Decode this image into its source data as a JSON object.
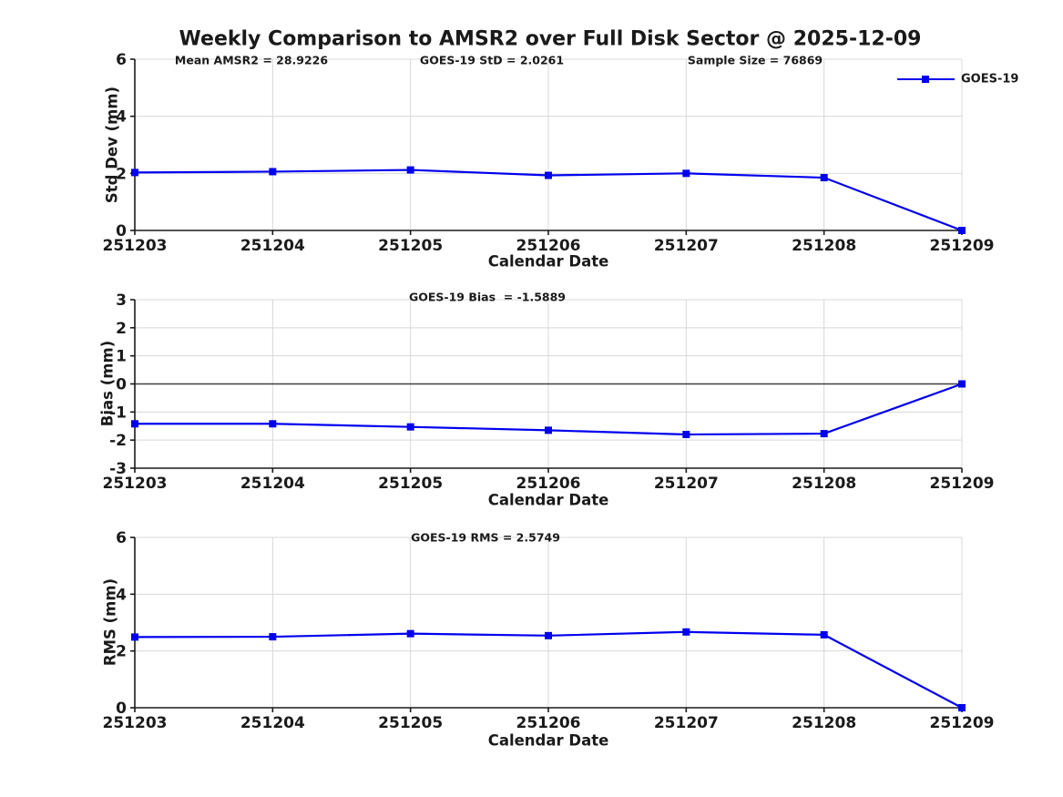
{
  "title": "Weekly Comparison to AMSR2 over Full Disk Sector @ 2025-12-09",
  "colors": {
    "line": "#0000ee",
    "grid": "#d8d8d8",
    "axis": "#1a1a1a",
    "zero_line": "#404040",
    "text": "#1a1a1a"
  },
  "chart_data": [
    {
      "type": "line",
      "id": "std-dev",
      "ylabel": "Std Dev (mm)",
      "xlabel": "Calendar Date",
      "categories": [
        "251203",
        "251204",
        "251205",
        "251206",
        "251207",
        "251208",
        "251209"
      ],
      "series": [
        {
          "name": "GOES-19",
          "values": [
            2.03,
            2.06,
            2.12,
            1.93,
            2.0,
            1.85,
            0.0
          ]
        }
      ],
      "ylim": [
        0,
        6
      ],
      "yticks": [
        0,
        2,
        4,
        6
      ],
      "grid": true,
      "zero_line": false,
      "legend_position": "top-right",
      "annotations": [
        {
          "text": "Mean AMSR2 = 28.9226"
        },
        {
          "text": "GOES-19 StD = 2.0261"
        },
        {
          "text": "Sample Size = 76869"
        }
      ]
    },
    {
      "type": "line",
      "id": "bias",
      "ylabel": "Bias (mm)",
      "xlabel": "Calendar Date",
      "categories": [
        "251203",
        "251204",
        "251205",
        "251206",
        "251207",
        "251208",
        "251209"
      ],
      "series": [
        {
          "name": "GOES-19",
          "values": [
            -1.42,
            -1.42,
            -1.53,
            -1.65,
            -1.8,
            -1.77,
            0.0
          ]
        }
      ],
      "ylim": [
        -3,
        3
      ],
      "yticks": [
        -3,
        -2,
        -1,
        0,
        1,
        2,
        3
      ],
      "grid": true,
      "zero_line": true,
      "legend_position": "none",
      "annotations": [
        {
          "text": "GOES-19 Bias  = -1.5889"
        }
      ]
    },
    {
      "type": "line",
      "id": "rms",
      "ylabel": "RMS (mm)",
      "xlabel": "Calendar Date",
      "categories": [
        "251203",
        "251204",
        "251205",
        "251206",
        "251207",
        "251208",
        "251209"
      ],
      "series": [
        {
          "name": "GOES-19",
          "values": [
            2.49,
            2.5,
            2.61,
            2.54,
            2.67,
            2.57,
            0.0
          ]
        }
      ],
      "ylim": [
        0,
        6
      ],
      "yticks": [
        0,
        2,
        4,
        6
      ],
      "grid": true,
      "zero_line": false,
      "legend_position": "none",
      "annotations": [
        {
          "text": "GOES-19 RMS = 2.5749"
        }
      ]
    }
  ]
}
